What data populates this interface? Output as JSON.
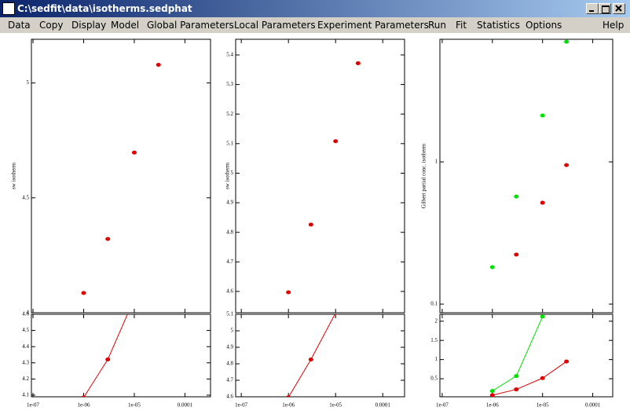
{
  "window": {
    "title": "C:\\sedfit\\data\\isotherms.sedphat"
  },
  "menu": [
    "Data",
    "Copy",
    "Display",
    "Model",
    "Global Parameters",
    "Local Parameters",
    "Experiment Parameters",
    "Run",
    "Fit",
    "Statistics",
    "Options",
    "Help"
  ],
  "panels": [
    {
      "ylabel": "sw isotherm",
      "x": [
        1e-06,
        3e-06,
        1e-05,
        3e-05
      ],
      "xlim": [
        9.3e-08,
        0.00032
      ],
      "xticks": [
        {
          "value": 1e-07,
          "label": "1e-07"
        },
        {
          "value": 1e-06,
          "label": "1e-06"
        },
        {
          "value": 1e-05,
          "label": "1e-05"
        },
        0.0001
      ],
      "top": {
        "ylim": [
          4.0,
          5.19
        ],
        "yticks": [
          4,
          4.5,
          5
        ]
      },
      "bottom": {
        "ylim": [
          4.09,
          4.6
        ],
        "yticks": [
          4.1,
          4.2,
          4.3,
          4.4,
          4.5,
          4.6
        ]
      },
      "series": [
        {
          "color": "#e00000",
          "values": [
            4.086,
            4.321,
            4.697,
            5.079
          ]
        }
      ]
    },
    {
      "ylabel": "sw isotherm",
      "x": [
        1e-06,
        3e-06,
        1e-05,
        3e-05
      ],
      "xlim": [
        7.6e-08,
        0.00029
      ],
      "xticks": [
        {
          "value": 1e-07,
          "label": "1e-07"
        },
        {
          "value": 1e-06,
          "label": "1e-06"
        },
        {
          "value": 1e-05,
          "label": "1e-05"
        },
        0.0001
      ],
      "top": {
        "ylim": [
          4.528,
          5.453
        ],
        "yticks": [
          4.6,
          4.7,
          4.8,
          4.9,
          5,
          5.1,
          5.2,
          5.3,
          5.4
        ]
      },
      "bottom": {
        "ylim": [
          4.6,
          5.1
        ],
        "yticks": [
          4.6,
          4.7,
          4.8,
          4.9,
          5,
          5.1
        ]
      },
      "series": [
        {
          "color": "#e00000",
          "values": [
            4.597,
            4.826,
            5.108,
            5.372
          ]
        }
      ]
    },
    {
      "ylabel": "Gilbert partial conc. isotherm",
      "x": [
        1e-06,
        3e-06,
        1e-05,
        3e-05
      ],
      "xlim": [
        9e-08,
        0.00025
      ],
      "xticks": [
        {
          "value": 1e-07,
          "label": "1e-07"
        },
        {
          "value": 1e-06,
          "label": "1e-06"
        },
        {
          "value": 1e-05,
          "label": "1e-05"
        },
        0.0001
      ],
      "top": {
        "ylim": [
          0.087,
          7.28
        ],
        "yticks": [
          0.1,
          1
        ],
        "log": true
      },
      "bottom": {
        "ylim": [
          0.03,
          2.18
        ],
        "yticks": [
          0.5,
          1,
          1.5,
          2
        ]
      },
      "series": [
        {
          "color": "#e00000",
          "values": [
            0.07,
            0.223,
            0.516,
            0.95
          ]
        },
        {
          "color": "#00e000",
          "values": [
            0.182,
            0.571,
            2.12,
            7.0
          ]
        }
      ]
    }
  ]
}
